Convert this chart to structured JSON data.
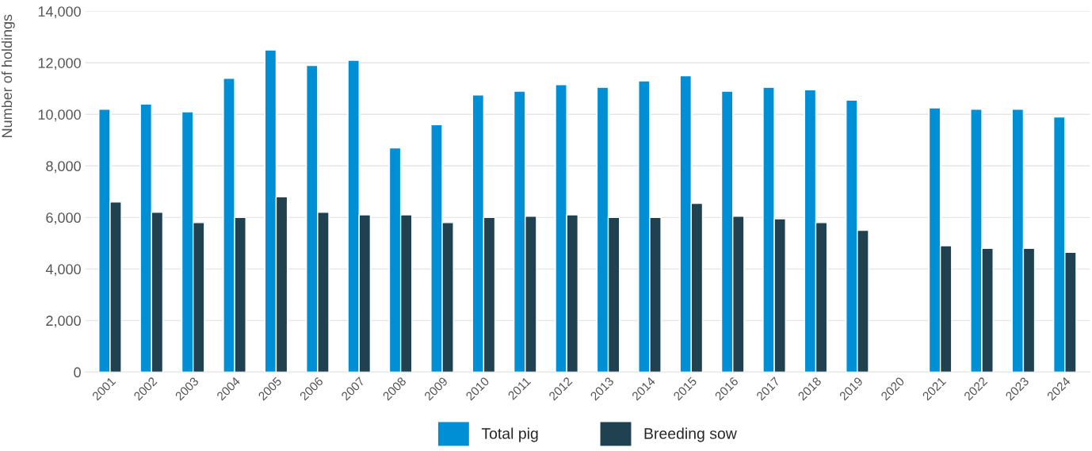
{
  "chart_data": {
    "type": "bar",
    "ylabel": "Number of holdings",
    "categories": [
      "2001",
      "2002",
      "2003",
      "2004",
      "2005",
      "2006",
      "2007",
      "2008",
      "2009",
      "2010",
      "2011",
      "2012",
      "2013",
      "2014",
      "2015",
      "2016",
      "2017",
      "2018",
      "2019",
      "2020",
      "2021",
      "2022",
      "2023",
      "2024"
    ],
    "series": [
      {
        "name": "Total pig",
        "color": "#008fd5",
        "values": [
          10200,
          10400,
          10100,
          11400,
          12500,
          11900,
          12100,
          8700,
          9600,
          10750,
          10900,
          11150,
          11050,
          11300,
          11500,
          10900,
          11050,
          10950,
          10550,
          null,
          10250,
          10200,
          10200,
          9900
        ]
      },
      {
        "name": "Breeding sow",
        "color": "#1f4150",
        "values": [
          6600,
          6200,
          5800,
          6000,
          6800,
          6200,
          6100,
          6100,
          5800,
          6000,
          6050,
          6100,
          6000,
          6000,
          6550,
          6050,
          5950,
          5800,
          5500,
          null,
          4900,
          4800,
          4800,
          4650
        ]
      }
    ],
    "ylim": [
      0,
      14000
    ],
    "yticks": [
      {
        "value": 0,
        "label": "0"
      },
      {
        "value": 2000,
        "label": "2,000"
      },
      {
        "value": 4000,
        "label": "4,000"
      },
      {
        "value": 6000,
        "label": "6,000"
      },
      {
        "value": 8000,
        "label": "8,000"
      },
      {
        "value": 10000,
        "label": "10,000"
      },
      {
        "value": 12000,
        "label": "12,000"
      },
      {
        "value": 14000,
        "label": "14,000"
      }
    ],
    "grid": "y",
    "legend": "bottom"
  }
}
